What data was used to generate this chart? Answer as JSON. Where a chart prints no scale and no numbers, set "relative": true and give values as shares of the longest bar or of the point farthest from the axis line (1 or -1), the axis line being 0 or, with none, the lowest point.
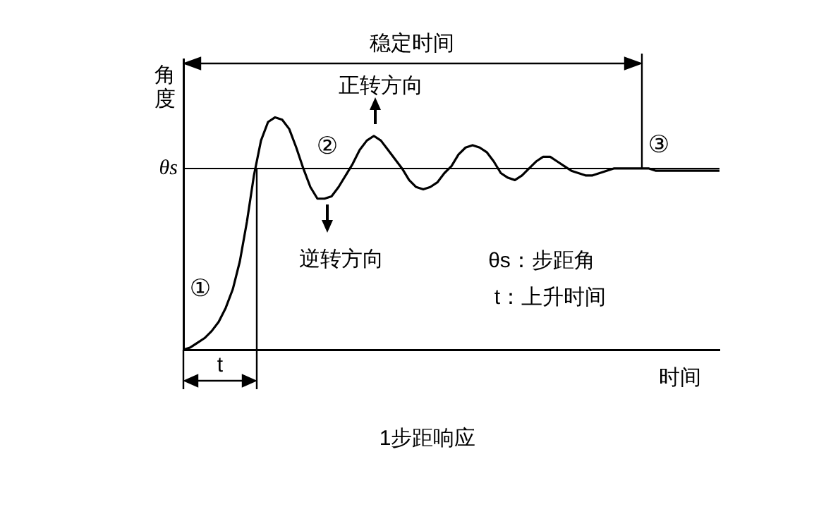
{
  "chart_data": {
    "type": "line",
    "relative": true,
    "xlabel": "时间",
    "ylabel": "角度",
    "categories": [
      null,
      null,
      null,
      null,
      null,
      null,
      null,
      null,
      null,
      null,
      null,
      null,
      null,
      null,
      null,
      null,
      null,
      null,
      null,
      null,
      null,
      null,
      null,
      null,
      null,
      null,
      null,
      null,
      null,
      null,
      null,
      null,
      null,
      null,
      null,
      null,
      null,
      null,
      null,
      null,
      null,
      null,
      null,
      null,
      null,
      null,
      null,
      null,
      null,
      null,
      null,
      null,
      null,
      null,
      null,
      null,
      null,
      null,
      null,
      null,
      null,
      null,
      null,
      null,
      null,
      null,
      null,
      null,
      null,
      null,
      null,
      null,
      null,
      null,
      null,
      null,
      null
    ],
    "series": [
      {
        "color": "#000000",
        "values": [
          0,
          0.01,
          0.03,
          0.05,
          0.08,
          0.12,
          0.18,
          0.26,
          0.38,
          0.55,
          0.75,
          0.9,
          0.98,
          1,
          0.99,
          0.95,
          0.87,
          0.78,
          0.7,
          0.65,
          0.65,
          0.66,
          0.7,
          0.75,
          0.8,
          0.86,
          0.9,
          0.92,
          0.9,
          0.86,
          0.82,
          0.78,
          0.73,
          0.7,
          0.69,
          0.7,
          0.72,
          0.76,
          0.79,
          0.84,
          0.87,
          0.88,
          0.87,
          0.85,
          0.81,
          0.76,
          0.74,
          0.73,
          0.75,
          0.78,
          0.81,
          0.83,
          0.83,
          0.81,
          0.79,
          0.77,
          0.76,
          0.75,
          0.75,
          0.76,
          0.77,
          0.78,
          0.78,
          0.78,
          0.78,
          0.78,
          0.78,
          0.77,
          0.77,
          0.77,
          0.77,
          0.77,
          0.77,
          0.77,
          0.77,
          0.77,
          0.77
        ]
      }
    ],
    "ref_lines": [
      {
        "axis": "y",
        "value": 0.78,
        "label": "θs",
        "color": "#000000"
      }
    ],
    "annotations": [
      "稳定时间",
      "正转方向",
      "逆转方向",
      "①",
      "②",
      "③",
      "θs：步距角",
      "t：上升时间",
      "t",
      "1步距响应"
    ],
    "marker": "none",
    "line_style": "solid",
    "grid": false,
    "legend": false
  }
}
